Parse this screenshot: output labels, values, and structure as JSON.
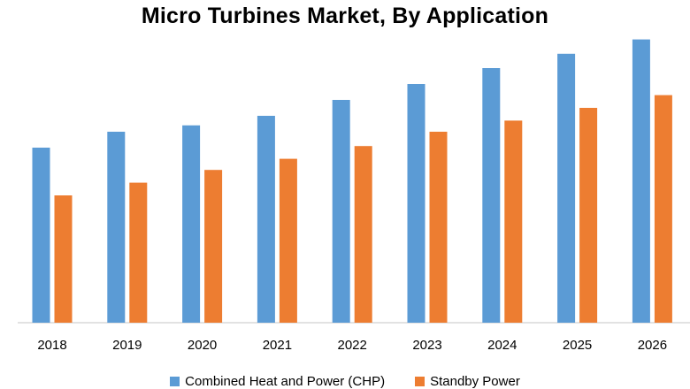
{
  "chart_data": {
    "type": "bar",
    "title": "Micro Turbines Market, By Application",
    "xlabel": "",
    "ylabel": "",
    "categories": [
      "2018",
      "2019",
      "2020",
      "2021",
      "2022",
      "2023",
      "2024",
      "2025",
      "2026"
    ],
    "series": [
      {
        "name": "Combined Heat and Power (CHP)",
        "color": "#5B9BD5",
        "values": [
          5.5,
          6.0,
          6.2,
          6.5,
          7.0,
          7.5,
          8.0,
          8.45,
          8.9
        ]
      },
      {
        "name": "Standby Power",
        "color": "#ED7D31",
        "values": [
          4.0,
          4.4,
          4.8,
          5.15,
          5.55,
          6.0,
          6.35,
          6.75,
          7.15
        ]
      }
    ],
    "ylim": [
      0,
      10
    ],
    "grid": false,
    "legend_position": "bottom"
  }
}
